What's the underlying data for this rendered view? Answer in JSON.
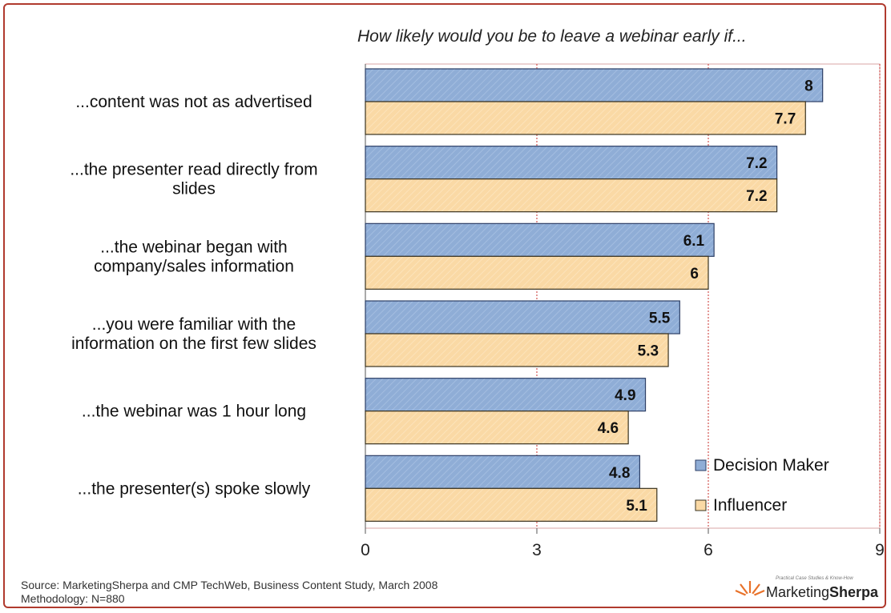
{
  "chart_data": {
    "type": "bar",
    "orientation": "horizontal",
    "title": "How likely would you be to leave a webinar early if...",
    "categories": [
      [
        "...content was not as advertised"
      ],
      [
        "...the presenter read directly from",
        "slides"
      ],
      [
        "...the webinar began with",
        "company/sales information"
      ],
      [
        "...you were familiar with the",
        "information on the first few slides"
      ],
      [
        "...the webinar was 1 hour long"
      ],
      [
        "...the presenter(s) spoke slowly"
      ]
    ],
    "series": [
      {
        "name": "Decision Maker",
        "values": [
          8,
          7.2,
          6.1,
          5.5,
          4.9,
          4.8
        ],
        "labels": [
          "8",
          "7.2",
          "6.1",
          "5.5",
          "4.9",
          "4.8"
        ],
        "color": "#8fadd6"
      },
      {
        "name": "Influencer",
        "values": [
          7.7,
          7.2,
          6,
          5.3,
          4.6,
          5.1
        ],
        "labels": [
          "7.7",
          "7.2",
          "6",
          "5.3",
          "4.6",
          "5.1"
        ],
        "color": "#fad9a5"
      }
    ],
    "xlim": [
      0,
      9
    ],
    "xticks": [
      0,
      3,
      6,
      9
    ],
    "grid": true,
    "legend": "bottom-right"
  },
  "footer": {
    "source": "Source: MarketingSherpa and CMP TechWeb, Business Content Study, March 2008",
    "methodology": "Methodology: N=880"
  },
  "brand": {
    "tagline": "Practical Case Studies & Know-How",
    "name_part1": "Marketing",
    "name_part2": "Sherpa"
  }
}
